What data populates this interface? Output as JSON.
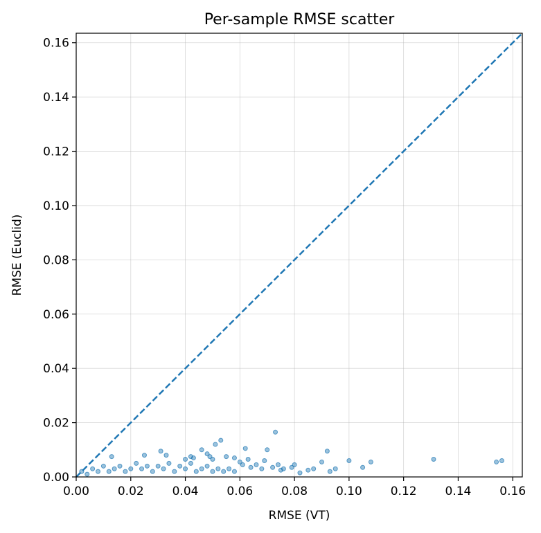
{
  "chart_data": {
    "type": "scatter",
    "title": "Per-sample RMSE scatter",
    "xlabel": "RMSE (VT)",
    "ylabel": "RMSE (Euclid)",
    "xlim": [
      0.0,
      0.1635
    ],
    "ylim": [
      0.0,
      0.1635
    ],
    "xticks": [
      "0.00",
      "0.02",
      "0.04",
      "0.06",
      "0.08",
      "0.10",
      "0.12",
      "0.14",
      "0.16"
    ],
    "yticks": [
      "0.00",
      "0.02",
      "0.04",
      "0.06",
      "0.08",
      "0.10",
      "0.12",
      "0.14",
      "0.16"
    ],
    "grid": true,
    "reference_line": {
      "style": "dashed",
      "from": [
        0,
        0
      ],
      "to": [
        0.1635,
        0.1635
      ]
    },
    "point_color": "#1f77b4",
    "line_color": "#1f77b4",
    "series": [
      {
        "points": [
          [
            0.002,
            0.002
          ],
          [
            0.004,
            0.001
          ],
          [
            0.006,
            0.003
          ],
          [
            0.008,
            0.002
          ],
          [
            0.01,
            0.004
          ],
          [
            0.012,
            0.002
          ],
          [
            0.014,
            0.003
          ],
          [
            0.016,
            0.004
          ],
          [
            0.018,
            0.002
          ],
          [
            0.02,
            0.003
          ],
          [
            0.022,
            0.005
          ],
          [
            0.024,
            0.003
          ],
          [
            0.026,
            0.004
          ],
          [
            0.028,
            0.002
          ],
          [
            0.03,
            0.004
          ],
          [
            0.032,
            0.003
          ],
          [
            0.034,
            0.005
          ],
          [
            0.036,
            0.002
          ],
          [
            0.038,
            0.004
          ],
          [
            0.04,
            0.003
          ],
          [
            0.042,
            0.005
          ],
          [
            0.044,
            0.002
          ],
          [
            0.046,
            0.003
          ],
          [
            0.048,
            0.004
          ],
          [
            0.05,
            0.002
          ],
          [
            0.052,
            0.003
          ],
          [
            0.054,
            0.002
          ],
          [
            0.056,
            0.003
          ],
          [
            0.058,
            0.002
          ],
          [
            0.013,
            0.0075
          ],
          [
            0.025,
            0.008
          ],
          [
            0.031,
            0.0095
          ],
          [
            0.033,
            0.008
          ],
          [
            0.04,
            0.0065
          ],
          [
            0.042,
            0.0075
          ],
          [
            0.043,
            0.007
          ],
          [
            0.046,
            0.01
          ],
          [
            0.048,
            0.0085
          ],
          [
            0.049,
            0.0075
          ],
          [
            0.05,
            0.0065
          ],
          [
            0.051,
            0.012
          ],
          [
            0.053,
            0.0135
          ],
          [
            0.055,
            0.0075
          ],
          [
            0.058,
            0.007
          ],
          [
            0.06,
            0.0055
          ],
          [
            0.061,
            0.0045
          ],
          [
            0.062,
            0.0105
          ],
          [
            0.063,
            0.0065
          ],
          [
            0.064,
            0.0035
          ],
          [
            0.066,
            0.0045
          ],
          [
            0.068,
            0.003
          ],
          [
            0.069,
            0.006
          ],
          [
            0.07,
            0.01
          ],
          [
            0.072,
            0.0035
          ],
          [
            0.073,
            0.0165
          ],
          [
            0.074,
            0.0045
          ],
          [
            0.075,
            0.0025
          ],
          [
            0.076,
            0.003
          ],
          [
            0.079,
            0.0035
          ],
          [
            0.08,
            0.0045
          ],
          [
            0.082,
            0.0015
          ],
          [
            0.085,
            0.0025
          ],
          [
            0.087,
            0.003
          ],
          [
            0.09,
            0.0055
          ],
          [
            0.092,
            0.0095
          ],
          [
            0.093,
            0.002
          ],
          [
            0.095,
            0.003
          ],
          [
            0.1,
            0.006
          ],
          [
            0.105,
            0.0035
          ],
          [
            0.108,
            0.0055
          ],
          [
            0.131,
            0.0065
          ],
          [
            0.154,
            0.0055
          ],
          [
            0.156,
            0.006
          ]
        ]
      }
    ]
  }
}
